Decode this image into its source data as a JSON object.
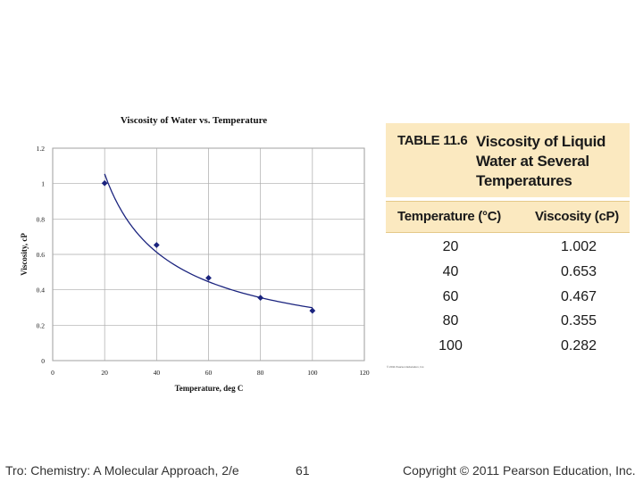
{
  "chart_data": {
    "type": "scatter",
    "title": "Viscosity of Water vs. Temperature",
    "xlabel": "Temperature, deg C",
    "ylabel": "Viscosity, cP",
    "xlim": [
      0,
      120
    ],
    "ylim": [
      0,
      1.2
    ],
    "xticks": [
      0,
      20,
      40,
      60,
      80,
      100,
      120
    ],
    "yticks": [
      0,
      0.2,
      0.4,
      0.6,
      0.8,
      1,
      1.2
    ],
    "grid": true,
    "series": [
      {
        "name": "Viscosity",
        "x": [
          20,
          40,
          60,
          80,
          100
        ],
        "y": [
          1.002,
          0.653,
          0.467,
          0.355,
          0.282
        ],
        "marker": "diamond",
        "color": "#1a237e"
      }
    ],
    "trendline": {
      "type": "power",
      "color": "#1a237e"
    }
  },
  "table": {
    "id": "TABLE 11.6",
    "title": "Viscosity of Liquid Water at Several Temperatures",
    "col_headers": [
      "Temperature (°C)",
      "Viscosity (cP)"
    ],
    "rows": [
      {
        "temp": "20",
        "visc": "1.002"
      },
      {
        "temp": "40",
        "visc": "0.653"
      },
      {
        "temp": "60",
        "visc": "0.467"
      },
      {
        "temp": "80",
        "visc": "0.355"
      },
      {
        "temp": "100",
        "visc": "0.282"
      }
    ],
    "credit": "© 2011 Pearson Education, Inc."
  },
  "footer": {
    "left": "Tro: Chemistry: A Molecular Approach, 2/e",
    "page": "61",
    "right": "Copyright © 2011 Pearson Education, Inc."
  },
  "colors": {
    "header_bg": "#fbe9c0",
    "marker": "#1a237e"
  }
}
